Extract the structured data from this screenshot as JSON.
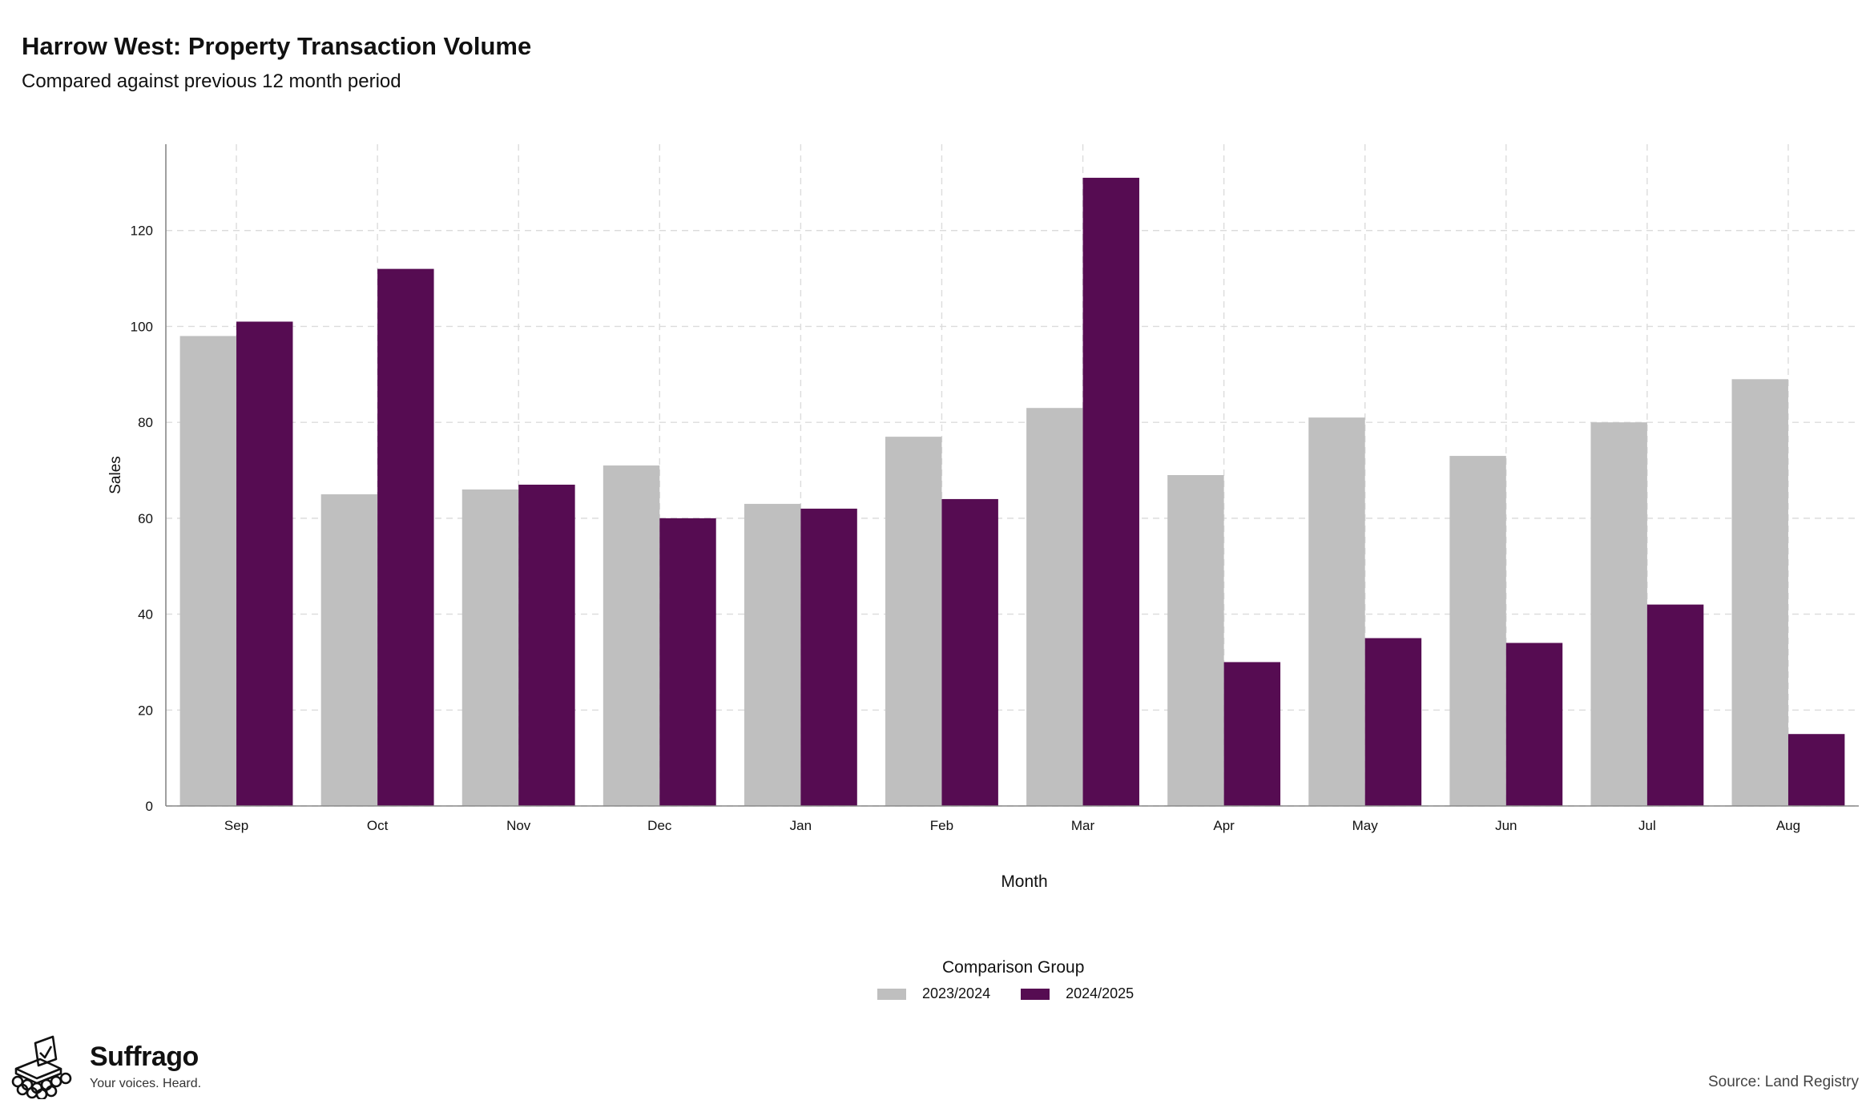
{
  "header": {
    "title": "Harrow West: Property Transaction Volume",
    "subtitle": "Compared against previous 12 month period"
  },
  "chart_data": {
    "type": "bar",
    "xlabel": "Month",
    "ylabel": "Sales",
    "ylim": [
      0,
      138
    ],
    "yticks": [
      0,
      20,
      40,
      60,
      80,
      100,
      120
    ],
    "grid": true,
    "categories": [
      "Sep",
      "Oct",
      "Nov",
      "Dec",
      "Jan",
      "Feb",
      "Mar",
      "Apr",
      "May",
      "Jun",
      "Jul",
      "Aug"
    ],
    "series": [
      {
        "name": "2023/2024",
        "color": "#bfbfbf",
        "values": [
          98,
          65,
          66,
          71,
          63,
          77,
          83,
          69,
          81,
          73,
          80,
          89
        ]
      },
      {
        "name": "2024/2025",
        "color": "#560c52",
        "values": [
          101,
          112,
          67,
          60,
          62,
          64,
          131,
          30,
          35,
          34,
          42,
          15
        ]
      }
    ],
    "legend_title": "Comparison Group",
    "legend_position": "bottom"
  },
  "branding": {
    "logo_icon": "ballot-box-icon",
    "name": "Suffrago",
    "tagline": "Your voices. Heard."
  },
  "footer": {
    "source": "Source: Land Registry"
  }
}
